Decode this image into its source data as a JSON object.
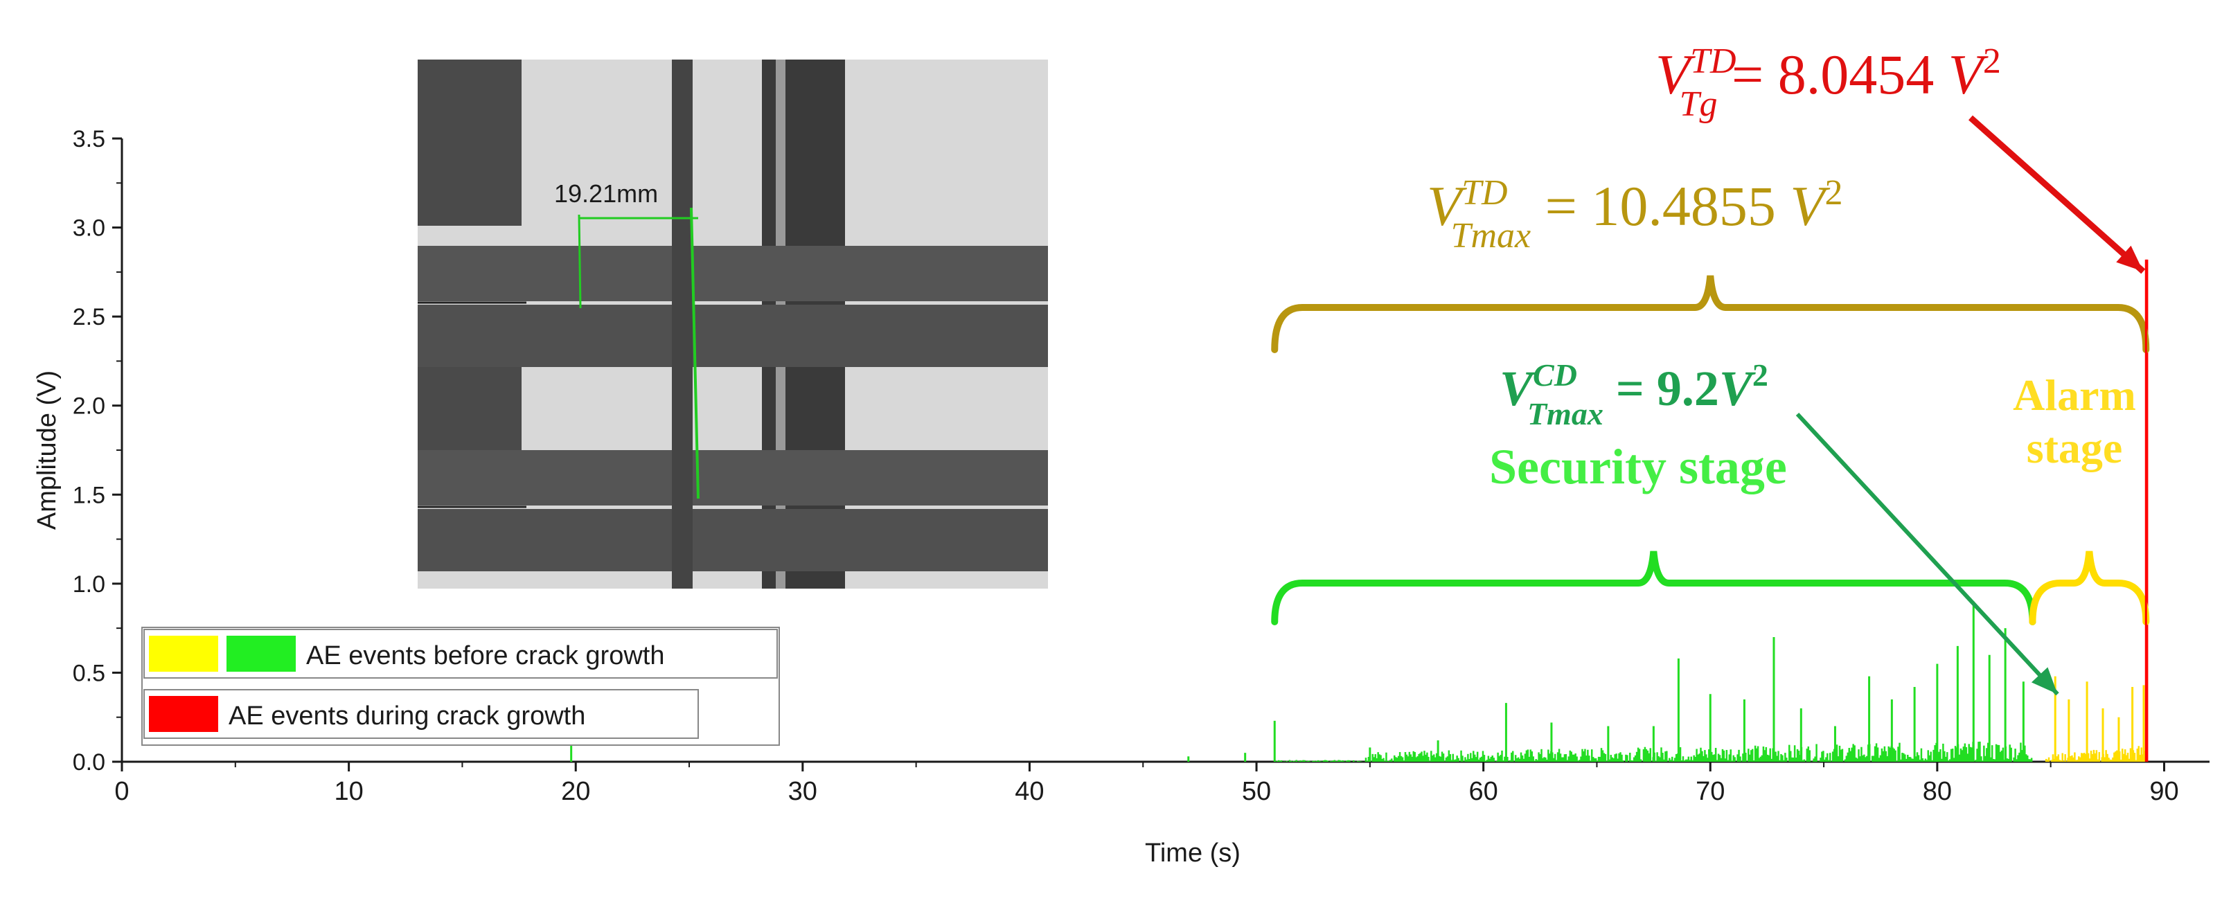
{
  "chart_data": {
    "type": "bar",
    "title": "",
    "xlabel": "Time (s)",
    "ylabel": "Amplitude (V)",
    "xlim": [
      0,
      92
    ],
    "ylim": [
      0,
      3.5
    ],
    "x_ticks": [
      "0",
      "10",
      "20",
      "30",
      "40",
      "50",
      "60",
      "70",
      "80",
      "90"
    ],
    "y_ticks": [
      "0.0",
      "0.5",
      "1.0",
      "1.5",
      "2.0",
      "2.5",
      "3.0",
      "3.5"
    ],
    "series": [
      {
        "name": "AE events before crack growth (security stage)",
        "color": "#22dd22",
        "time_range": [
          50.8,
          84.2
        ],
        "baseline_max": 0.12,
        "peaks": [
          [
            19.8,
            0.11
          ],
          [
            47,
            0.03
          ],
          [
            49.5,
            0.05
          ],
          [
            50.8,
            0.23
          ],
          [
            55,
            0.08
          ],
          [
            58,
            0.12
          ],
          [
            61,
            0.33
          ],
          [
            63,
            0.22
          ],
          [
            65.5,
            0.2
          ],
          [
            67.5,
            0.2
          ],
          [
            68.6,
            0.58
          ],
          [
            70,
            0.38
          ],
          [
            71.5,
            0.35
          ],
          [
            72.8,
            0.7
          ],
          [
            74,
            0.3
          ],
          [
            75.5,
            0.2
          ],
          [
            77,
            0.48
          ],
          [
            78,
            0.35
          ],
          [
            79,
            0.42
          ],
          [
            80,
            0.55
          ],
          [
            80.9,
            0.65
          ],
          [
            81.6,
            0.9
          ],
          [
            82.3,
            0.6
          ],
          [
            83,
            0.75
          ],
          [
            83.8,
            0.45
          ]
        ]
      },
      {
        "name": "AE events before crack growth (alarm stage)",
        "color": "#ffdd00",
        "time_range": [
          84.8,
          89.2
        ],
        "baseline_max": 0.1,
        "peaks": [
          [
            85.2,
            0.48
          ],
          [
            85.8,
            0.35
          ],
          [
            86.6,
            0.45
          ],
          [
            87.3,
            0.3
          ],
          [
            88,
            0.25
          ],
          [
            88.6,
            0.42
          ],
          [
            89.1,
            0.43
          ]
        ]
      },
      {
        "name": "AE events during crack growth",
        "color": "#ff0000",
        "time_range": [
          89.2,
          89.3
        ],
        "peaks": [
          [
            89.25,
            2.82
          ]
        ]
      }
    ],
    "legend": {
      "position": "bottom-left",
      "entries": [
        {
          "label": "AE events before crack growth",
          "colors": [
            "#ffff00",
            "#22ee22"
          ]
        },
        {
          "label": "AE events during crack growth",
          "colors": [
            "#ff0000"
          ]
        }
      ]
    },
    "annotations": {
      "tg_label": "V",
      "tg_sup": "TD",
      "tg_sub": "Tg",
      "tg_value": " = 8.0454 ",
      "tg_unit": "V",
      "tg_exp": "2",
      "tmax_td_label": "V",
      "tmax_td_sup": "TD",
      "tmax_td_sub": "Tmax",
      "tmax_td_value": " = 10.4855 ",
      "tmax_td_unit": "V",
      "tmax_td_exp": "2",
      "tmax_cd_label": "V",
      "tmax_cd_sup": "CD",
      "tmax_cd_sub": "Tmax",
      "tmax_cd_value": " = 9.2",
      "tmax_cd_unit": "V",
      "tmax_cd_exp": "2",
      "security_stage": "Security stage",
      "alarm_stage_line1": "Alarm",
      "alarm_stage_line2": "stage",
      "photo_measure": "19.21mm",
      "td_brace_range": [
        50.8,
        89.2
      ],
      "security_brace_range": [
        50.8,
        84.2
      ],
      "alarm_brace_range": [
        84.2,
        89.2
      ],
      "tg_time": 89.2
    },
    "colors": {
      "axis": "#1a1a1a",
      "green": "#22dd22",
      "yellow": "#ffdd00",
      "red": "#ff0000",
      "gold": "#b8960f",
      "dark_green": "#1fa050",
      "arrow_red": "#e01010"
    }
  }
}
